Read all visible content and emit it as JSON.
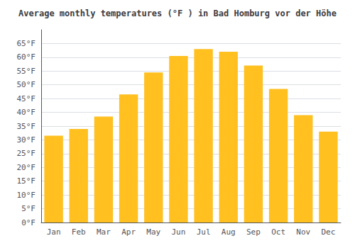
{
  "chart_data": {
    "type": "bar",
    "title": "Average monthly temperatures (°F ) in Bad Homburg vor der Höhe",
    "categories": [
      "Jan",
      "Feb",
      "Mar",
      "Apr",
      "May",
      "Jun",
      "Jul",
      "Aug",
      "Sep",
      "Oct",
      "Nov",
      "Dec"
    ],
    "values": [
      31.5,
      34.0,
      38.5,
      46.5,
      54.5,
      60.5,
      63.0,
      62.0,
      57.0,
      48.5,
      39.0,
      33.0
    ],
    "color": "#FFC020",
    "ylim": [
      0,
      70
    ],
    "yticks": [
      {
        "value": 0,
        "label": "0°F"
      },
      {
        "value": 5,
        "label": "5°F"
      },
      {
        "value": 10,
        "label": "10°F"
      },
      {
        "value": 15,
        "label": "15°F"
      },
      {
        "value": 20,
        "label": "20°F"
      },
      {
        "value": 25,
        "label": "25°F"
      },
      {
        "value": 30,
        "label": "30°F"
      },
      {
        "value": 35,
        "label": "35°F"
      },
      {
        "value": 40,
        "label": "40°F"
      },
      {
        "value": 45,
        "label": "45°F"
      },
      {
        "value": 50,
        "label": "50°F"
      },
      {
        "value": 55,
        "label": "55°F"
      },
      {
        "value": 60,
        "label": "60°F"
      },
      {
        "value": 65,
        "label": "65°F"
      }
    ],
    "grid": true
  }
}
